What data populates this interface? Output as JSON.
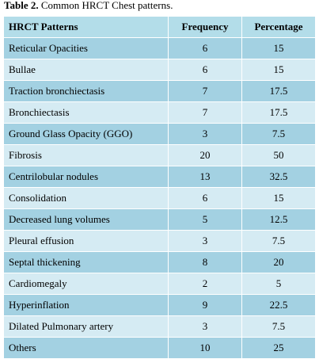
{
  "caption": {
    "label": "Table 2.",
    "text": " Common HRCT Chest patterns."
  },
  "colors": {
    "header_bg": "#b3dde9",
    "dark_row_bg": "#a3d1e2",
    "light_row_bg": "#d5ebf3"
  },
  "table": {
    "headers": [
      "HRCT Patterns",
      "Frequency",
      "Percentage"
    ],
    "rows": [
      {
        "pattern": "Reticular Opacities",
        "frequency": "6",
        "percentage": "15"
      },
      {
        "pattern": "Bullae",
        "frequency": "6",
        "percentage": "15"
      },
      {
        "pattern": "Traction bronchiectasis",
        "frequency": "7",
        "percentage": "17.5"
      },
      {
        "pattern": "Bronchiectasis",
        "frequency": "7",
        "percentage": "17.5"
      },
      {
        "pattern": "Ground Glass Opacity (GGO)",
        "frequency": "3",
        "percentage": "7.5"
      },
      {
        "pattern": "Fibrosis",
        "frequency": "20",
        "percentage": "50"
      },
      {
        "pattern": "Centrilobular nodules",
        "frequency": "13",
        "percentage": "32.5"
      },
      {
        "pattern": "Consolidation",
        "frequency": "6",
        "percentage": "15"
      },
      {
        "pattern": "Decreased lung volumes",
        "frequency": "5",
        "percentage": "12.5"
      },
      {
        "pattern": "Pleural effusion",
        "frequency": "3",
        "percentage": "7.5"
      },
      {
        "pattern": "Septal thickening",
        "frequency": "8",
        "percentage": "20"
      },
      {
        "pattern": "Cardiomegaly",
        "frequency": "2",
        "percentage": "5"
      },
      {
        "pattern": "Hyperinflation",
        "frequency": "9",
        "percentage": "22.5"
      },
      {
        "pattern": "Dilated Pulmonary artery",
        "frequency": "3",
        "percentage": "7.5"
      },
      {
        "pattern": "Others",
        "frequency": "10",
        "percentage": "25"
      }
    ]
  }
}
